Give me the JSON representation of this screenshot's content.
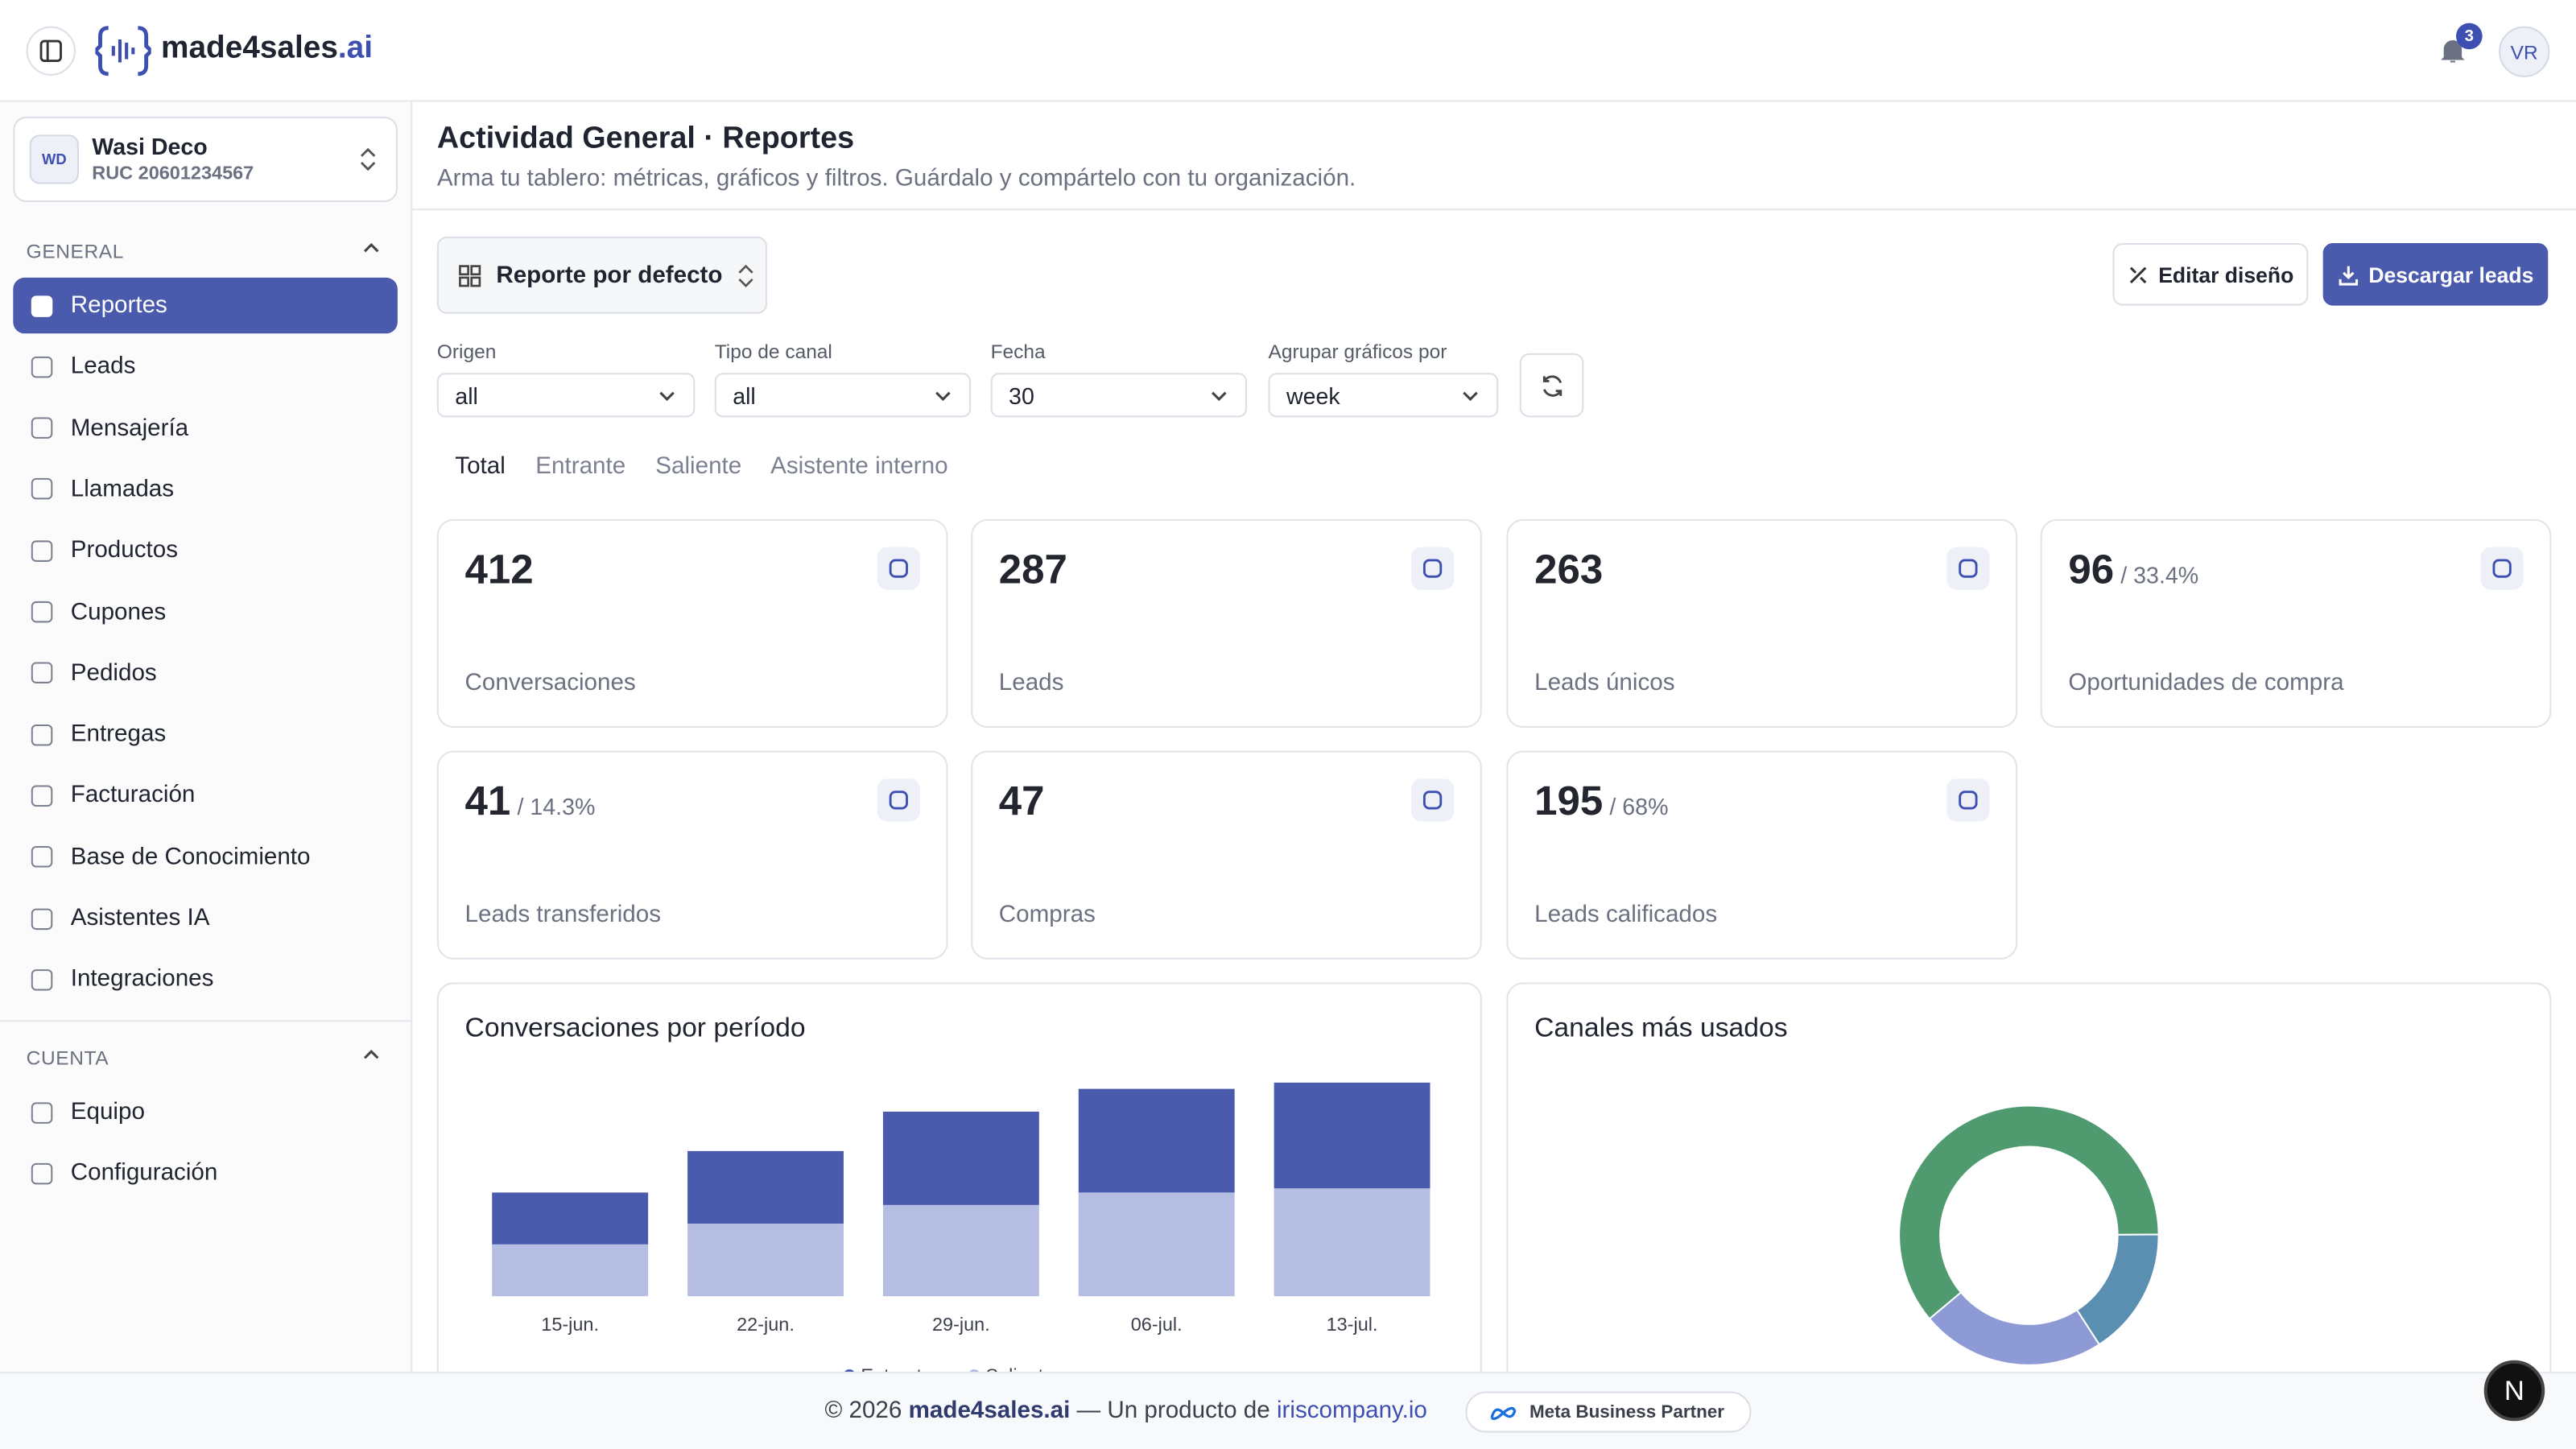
{
  "header": {
    "brand": "made4sales",
    "brand_suffix": ".ai",
    "notifications": 3,
    "avatar": "VR"
  },
  "org": {
    "initials": "WD",
    "name": "Wasi Deco",
    "ruc": "RUC 20601234567"
  },
  "sidebar": {
    "sections": [
      {
        "title": "GENERAL",
        "items": [
          "Reportes",
          "Leads",
          "Mensajería",
          "Llamadas",
          "Productos",
          "Cupones",
          "Pedidos",
          "Entregas",
          "Facturación",
          "Base de Conocimiento",
          "Asistentes IA",
          "Integraciones"
        ]
      },
      {
        "title": "CUENTA",
        "items": [
          "Equipo",
          "Configuración"
        ]
      }
    ]
  },
  "page": {
    "title": "Actividad General · Reportes",
    "subtitle": "Arma tu tablero: métricas, gráficos y filtros. Guárdalo y compártelo con tu organización.",
    "report": "Reporte por defecto",
    "actions": [
      "Editar diseño",
      "Descargar leads"
    ]
  },
  "filters": [
    {
      "label": "Origen",
      "value": "all"
    },
    {
      "label": "Tipo de canal",
      "value": "all"
    },
    {
      "label": "Fecha",
      "value": "30"
    },
    {
      "label": "Agrupar gráficos por",
      "value": "week"
    }
  ],
  "tabs": [
    "Total",
    "Entrante",
    "Saliente",
    "Asistente interno"
  ],
  "kpis": [
    {
      "value": 412,
      "label": "Conversaciones"
    },
    {
      "value": 287,
      "label": "Leads"
    },
    {
      "value": 263,
      "label": "Leads únicos"
    },
    {
      "value": 96,
      "pct": "/ 33.4%",
      "label": "Oportunidades de compra"
    },
    {
      "value": 41,
      "pct": "/ 14.3%",
      "label": "Leads transferidos"
    },
    {
      "value": 47,
      "label": "Compras"
    },
    {
      "value": 195,
      "pct": "/ 68%",
      "label": "Leads calificados"
    }
  ],
  "chart_data": [
    {
      "type": "bar",
      "stacked": true,
      "title": "Conversaciones por período",
      "categories": [
        "15-jun.",
        "22-jun.",
        "29-jun.",
        "06-jul.",
        "13-jul."
      ],
      "series": [
        {
          "name": "Entrante",
          "color": "#4a5aad",
          "values": [
            25,
            35,
            45,
            50,
            51
          ]
        },
        {
          "name": "Saliente",
          "color": "#b5bde3",
          "values": [
            25,
            35,
            44,
            50,
            52
          ]
        }
      ]
    },
    {
      "type": "pie",
      "donut": true,
      "title": "Canales más usados",
      "values": [
        61,
        16,
        23
      ],
      "colors": [
        "#4f9a6f",
        "#5b8fb2",
        "#8e9ad6"
      ]
    }
  ],
  "footer": {
    "copyright": "© 2026",
    "brand": "made4sales.ai",
    "middle": "— Un producto de",
    "link": "iriscompany.io",
    "badge": "Meta Business Partner"
  }
}
